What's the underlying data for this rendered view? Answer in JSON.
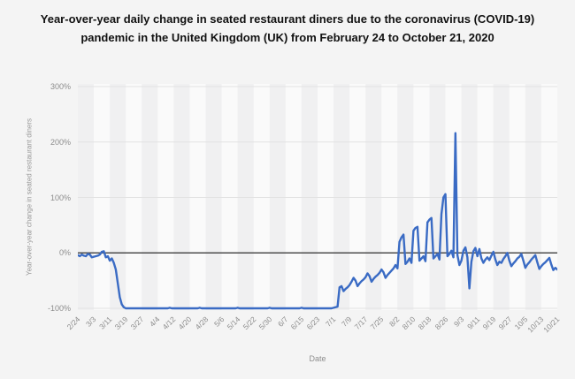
{
  "page": {
    "background_color": "#f4f4f4"
  },
  "chart_data": {
    "type": "line",
    "title": "Year-over-year daily change in seated restaurant diners due to the coronavirus (COVID-19) pandemic in the United Kingdom (UK) from February 24 to October 21, 2020",
    "xlabel": "Date",
    "ylabel": "Year-over-year change in seated restaurant diners",
    "ylim": [
      -100,
      300
    ],
    "ytick_values": [
      300,
      200,
      100,
      0,
      -100
    ],
    "ytick_labels": [
      "300%",
      "200%",
      "100%",
      "0%",
      "-100%"
    ],
    "xtick_labels": [
      "2/24",
      "3/3",
      "3/11",
      "3/19",
      "3/27",
      "4/4",
      "4/12",
      "4/20",
      "4/28",
      "5/6",
      "5/14",
      "5/22",
      "5/30",
      "6/7",
      "6/15",
      "6/23",
      "7/1",
      "7/9",
      "7/17",
      "7/25",
      "8/2",
      "8/10",
      "8/18",
      "8/26",
      "9/3",
      "9/11",
      "9/19",
      "9/27",
      "10/5",
      "10/13",
      "10/21"
    ],
    "xtick_step_days": 8,
    "grid": true,
    "legend_position": "none",
    "line_color": "#3a6bc4",
    "zero_line_color": "#4d4d4d",
    "gridline_color": "#e2e2e2",
    "stripe_colors": [
      "#f0f0f1",
      "#fafafa"
    ],
    "start_date": "2/24/2020",
    "end_date": "10/21/2020",
    "frequency": "daily",
    "unit": "%",
    "series": [
      {
        "name": "Year-over-year change in seated restaurant diners (%)",
        "values": [
          -4,
          -6,
          -3,
          -5,
          -6,
          -2,
          -3,
          -8,
          -7,
          -6,
          -5,
          -3,
          2,
          3,
          -8,
          -6,
          -14,
          -10,
          -18,
          -30,
          -55,
          -80,
          -93,
          -98,
          -100,
          -100,
          -100,
          -100,
          -100,
          -100,
          -100,
          -100,
          -100,
          -100,
          -100,
          -100,
          -100,
          -100,
          -100,
          -100,
          -100,
          -100,
          -100,
          -100,
          -100,
          -100,
          -99,
          -100,
          -100,
          -100,
          -100,
          -100,
          -100,
          -100,
          -100,
          -100,
          -100,
          -100,
          -100,
          -100,
          -100,
          -99,
          -100,
          -100,
          -100,
          -100,
          -100,
          -100,
          -100,
          -100,
          -100,
          -100,
          -100,
          -100,
          -100,
          -100,
          -100,
          -100,
          -100,
          -100,
          -99,
          -100,
          -100,
          -100,
          -100,
          -100,
          -100,
          -100,
          -100,
          -100,
          -100,
          -100,
          -100,
          -100,
          -100,
          -100,
          -99,
          -100,
          -100,
          -100,
          -100,
          -100,
          -100,
          -100,
          -100,
          -100,
          -100,
          -100,
          -100,
          -100,
          -100,
          -100,
          -99,
          -100,
          -100,
          -100,
          -100,
          -100,
          -100,
          -100,
          -100,
          -100,
          -100,
          -100,
          -100,
          -100,
          -100,
          -100,
          -99,
          -98,
          -97,
          -62,
          -60,
          -69,
          -65,
          -62,
          -58,
          -52,
          -45,
          -50,
          -60,
          -55,
          -51,
          -48,
          -44,
          -37,
          -42,
          -52,
          -47,
          -43,
          -40,
          -36,
          -30,
          -35,
          -45,
          -40,
          -36,
          -32,
          -28,
          -22,
          -28,
          20,
          28,
          33,
          -20,
          -16,
          -10,
          -18,
          40,
          45,
          47,
          -14,
          -10,
          -6,
          -15,
          55,
          60,
          63,
          -10,
          -6,
          -2,
          -12,
          70,
          100,
          106,
          -6,
          -2,
          4,
          -8,
          216,
          -4,
          -22,
          -14,
          4,
          10,
          -8,
          -64,
          -16,
          3,
          9,
          -6,
          7,
          -10,
          -18,
          -12,
          -8,
          -13,
          -5,
          2,
          -12,
          -22,
          -16,
          -18,
          -11,
          -6,
          0,
          -14,
          -24,
          -19,
          -15,
          -10,
          -7,
          -2,
          -14,
          -27,
          -21,
          -17,
          -12,
          -8,
          -4,
          -17,
          -29,
          -24,
          -20,
          -17,
          -13,
          -9,
          -21,
          -31,
          -27,
          -30
        ]
      }
    ]
  }
}
